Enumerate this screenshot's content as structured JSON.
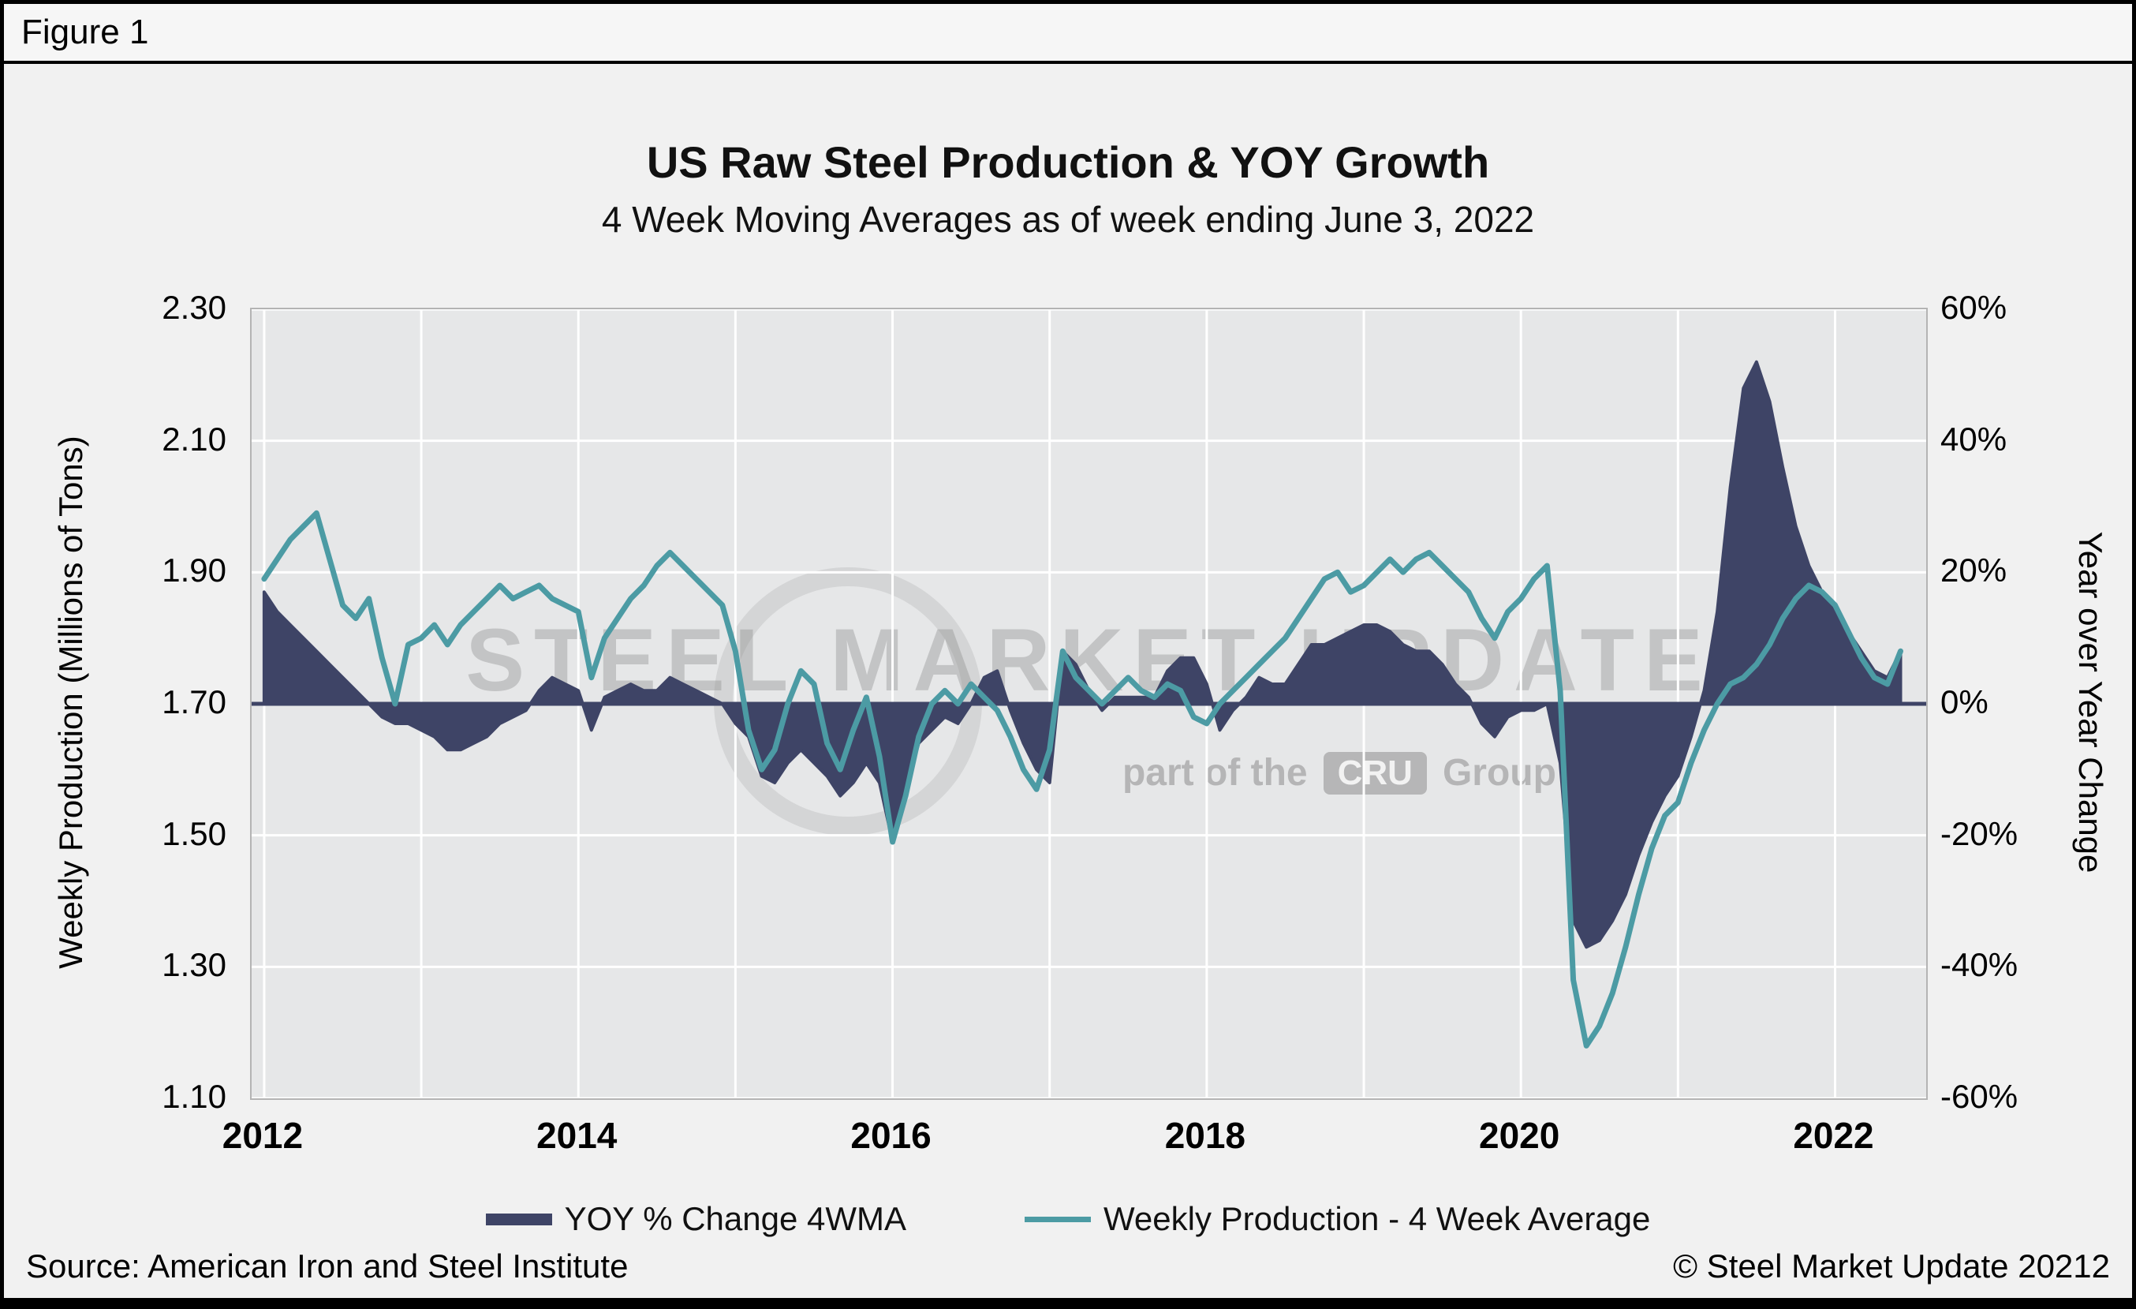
{
  "figure_label": "Figure 1",
  "title": "US Raw Steel Production & YOY Growth",
  "subtitle": "4 Week Moving Averages as of week ending June 3, 2022",
  "footer": {
    "source": "Source: American Iron and Steel Institute",
    "copyright": "© Steel Market Update 20212"
  },
  "watermark": {
    "line1": "STEEL MARKET UPDATE",
    "part_of": "part of the",
    "cru": "CRU",
    "group": "Group"
  },
  "colors": {
    "yoy_area": "#3E4466",
    "production_line": "#4C9BA4",
    "plot_bg": "#e6e7e8",
    "grid": "#ffffff",
    "zero_line": "#3E4466",
    "page_bg": "#f1f1f1"
  },
  "legend": [
    {
      "label": "YOY % Change 4WMA",
      "color": "#3E4466",
      "swatch": "area"
    },
    {
      "label": "Weekly Production - 4 Week Average",
      "color": "#4C9BA4",
      "swatch": "line"
    }
  ],
  "chart_data": {
    "type": "area+line dual-axis combo",
    "title": "US Raw Steel Production & YOY Growth",
    "subtitle": "4 Week Moving Averages as of week ending June 3, 2022",
    "x_start": 2012.0,
    "x_step": 0.083333,
    "x_range": [
      2011.92,
      2022.58
    ],
    "x_ticks": [
      2012,
      2014,
      2016,
      2018,
      2020,
      2022
    ],
    "x_gridlines": [
      2012,
      2013,
      2014,
      2015,
      2016,
      2017,
      2018,
      2019,
      2020,
      2021,
      2022
    ],
    "left_axis": {
      "label": "Weekly Production (Millions of Tons)",
      "min": 1.1,
      "max": 2.3,
      "ticks": [
        1.1,
        1.3,
        1.5,
        1.7,
        1.9,
        2.1,
        2.3
      ],
      "tick_labels": [
        "1.10",
        "1.30",
        "1.50",
        "1.70",
        "1.90",
        "2.10",
        "2.30"
      ]
    },
    "right_axis": {
      "label": "Year over Year Change",
      "min": -60,
      "max": 60,
      "ticks": [
        -60,
        -40,
        -20,
        0,
        20,
        40,
        60
      ],
      "tick_labels": [
        "-60%",
        "-40%",
        "-20%",
        "0%",
        "20%",
        "40%",
        "60%"
      ]
    },
    "series": [
      {
        "name": "YOY % Change 4WMA",
        "type": "area",
        "axis": "right",
        "unit": "%",
        "color": "#3E4466",
        "values": [
          17,
          14,
          12,
          10,
          8,
          6,
          4,
          2,
          0,
          -2,
          -3,
          -3,
          -4,
          -5,
          -7,
          -7,
          -6,
          -5,
          -3,
          -2,
          -1,
          2,
          4,
          3,
          2,
          -4,
          1,
          2,
          3,
          2,
          2,
          4,
          3,
          2,
          1,
          0,
          -3,
          -5,
          -11,
          -12,
          -9,
          -7,
          -9,
          -11,
          -14,
          -12,
          -9,
          -12,
          -21,
          -13,
          -6,
          -4,
          -2,
          -3,
          0,
          4,
          5,
          -1,
          -6,
          -10,
          -12,
          8,
          6,
          2,
          -1,
          1,
          1,
          1,
          1,
          5,
          7,
          7,
          3,
          -4,
          -1,
          1,
          4,
          3,
          3,
          6,
          9,
          9,
          10,
          11,
          12,
          12,
          11,
          9,
          8,
          8,
          6,
          3,
          1,
          -3,
          -5,
          -2,
          -1,
          -1,
          0,
          -9,
          -33,
          -37,
          -36,
          -33,
          -29,
          -23,
          -18,
          -14,
          -11,
          -5,
          2,
          14,
          33,
          48,
          52,
          46,
          36,
          27,
          21,
          17,
          14,
          11,
          8,
          5,
          4,
          8
        ]
      },
      {
        "name": "Weekly Production - 4 Week Average",
        "type": "line",
        "axis": "left",
        "unit": "million tons",
        "color": "#4C9BA4",
        "values": [
          1.89,
          1.92,
          1.95,
          1.97,
          1.99,
          1.92,
          1.85,
          1.83,
          1.86,
          1.77,
          1.7,
          1.79,
          1.8,
          1.82,
          1.79,
          1.82,
          1.84,
          1.86,
          1.88,
          1.86,
          1.87,
          1.88,
          1.86,
          1.85,
          1.84,
          1.74,
          1.8,
          1.83,
          1.86,
          1.88,
          1.91,
          1.93,
          1.91,
          1.89,
          1.87,
          1.85,
          1.78,
          1.66,
          1.6,
          1.63,
          1.7,
          1.75,
          1.73,
          1.64,
          1.6,
          1.66,
          1.71,
          1.62,
          1.49,
          1.56,
          1.65,
          1.7,
          1.72,
          1.7,
          1.73,
          1.71,
          1.69,
          1.65,
          1.6,
          1.57,
          1.63,
          1.78,
          1.74,
          1.72,
          1.7,
          1.72,
          1.74,
          1.72,
          1.71,
          1.73,
          1.72,
          1.68,
          1.67,
          1.7,
          1.72,
          1.74,
          1.76,
          1.78,
          1.8,
          1.83,
          1.86,
          1.89,
          1.9,
          1.87,
          1.88,
          1.9,
          1.92,
          1.9,
          1.92,
          1.93,
          1.91,
          1.89,
          1.87,
          1.83,
          1.8,
          1.84,
          1.86,
          1.89,
          1.91,
          1.72,
          1.28,
          1.18,
          1.21,
          1.26,
          1.33,
          1.41,
          1.48,
          1.53,
          1.55,
          1.61,
          1.66,
          1.7,
          1.73,
          1.74,
          1.76,
          1.79,
          1.83,
          1.86,
          1.88,
          1.87,
          1.85,
          1.81,
          1.77,
          1.74,
          1.73,
          1.78
        ]
      }
    ]
  }
}
